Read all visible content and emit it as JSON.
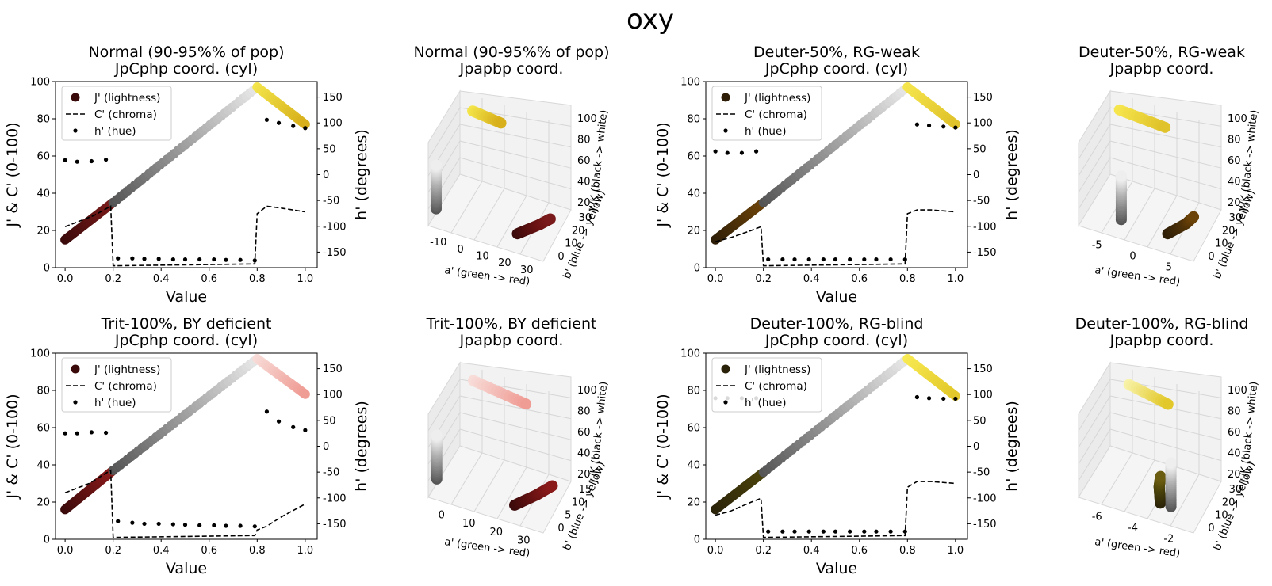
{
  "figure_title": "oxy",
  "chart_data": [
    {
      "type": "line",
      "title_line1": "Normal (90-95%% of pop)",
      "title_line2": "JpCphp coord. (cyl)",
      "xlabel": "Value",
      "ylabel": "J' & C' (0-100)",
      "y2label": "h' (degrees)",
      "xlim": [
        -0.04,
        1.05
      ],
      "ylim": [
        0,
        100
      ],
      "y2lim": [
        -180,
        180
      ],
      "xticks": [
        "0.0",
        "0.2",
        "0.4",
        "0.6",
        "0.8",
        "1.0"
      ],
      "yticks": [
        "0",
        "20",
        "40",
        "60",
        "80",
        "100"
      ],
      "y2ticks": [
        "-150",
        "-100",
        "-50",
        "0",
        "50",
        "100",
        "150"
      ],
      "legend": [
        "J' (lightness)",
        "C' (chroma)",
        "h' (hue)"
      ],
      "legend_swatch": "#3a0a0a",
      "series": [
        {
          "name": "J' (lightness)",
          "x": [
            0,
            0.2,
            0.2,
            0.8,
            0.8,
            1.0
          ],
          "values": [
            15,
            35,
            35,
            97,
            97,
            77
          ],
          "colors": [
            "#3a0a0a",
            "#7a1a1a",
            "#555555",
            "#e8e8e8",
            "#f3e54a",
            "#d8b01c"
          ]
        },
        {
          "name": "C' (chroma)",
          "x": [
            0,
            0.12,
            0.19,
            0.2,
            0.21,
            0.79,
            0.8,
            0.84,
            0.9,
            1.0
          ],
          "values": [
            22,
            28,
            33,
            1,
            1,
            2,
            29,
            33,
            32,
            30
          ]
        },
        {
          "name": "h' (hue)",
          "x": [
            0,
            0.05,
            0.11,
            0.17,
            0.22,
            0.28,
            0.33,
            0.39,
            0.45,
            0.5,
            0.56,
            0.62,
            0.67,
            0.73,
            0.79,
            0.84,
            0.89,
            0.95,
            1.0
          ],
          "values": [
            28,
            25,
            26,
            29,
            -162,
            -162,
            -163,
            -163,
            -164,
            -164,
            -164,
            -164,
            -165,
            -165,
            -166,
            106,
            100,
            94,
            90
          ]
        }
      ]
    },
    {
      "type": "scatter3d",
      "title_line1": "Normal (90-95%% of pop)",
      "title_line2": "Jpapbp coord.",
      "xlabel": "a' (green -> red)",
      "ylabel": "b' (blue -> yellow)",
      "zlabel": "J'/K (black -> white)",
      "xticks": [
        "-10",
        "0",
        "10",
        "20",
        "30"
      ],
      "yticks": [
        "0",
        "10",
        "20",
        "30"
      ],
      "zticks": [
        "20",
        "40",
        "60",
        "80",
        "100"
      ],
      "a": [
        22,
        27,
        29,
        0,
        0,
        0,
        3,
        10
      ],
      "b": [
        5,
        10,
        14,
        0,
        0,
        0,
        28,
        32
      ],
      "J": [
        20,
        28,
        30,
        30,
        65,
        80,
        97,
        85
      ],
      "colors": [
        "#3a0a0a",
        "#6a1212",
        "#7a1a1a",
        "#555555",
        "#bbbbbb",
        "#eeeeee",
        "#f3e54a",
        "#d8b01c"
      ]
    },
    {
      "type": "line",
      "title_line1": "Deuter-50%, RG-weak",
      "title_line2": "JpCphp coord. (cyl)",
      "xlabel": "Value",
      "ylabel": "J' & C' (0-100)",
      "y2label": "h' (degrees)",
      "xlim": [
        -0.04,
        1.05
      ],
      "ylim": [
        0,
        100
      ],
      "y2lim": [
        -180,
        180
      ],
      "xticks": [
        "0.0",
        "0.2",
        "0.4",
        "0.6",
        "0.8",
        "1.0"
      ],
      "yticks": [
        "0",
        "20",
        "40",
        "60",
        "80",
        "100"
      ],
      "y2ticks": [
        "-150",
        "-100",
        "-50",
        "0",
        "50",
        "100",
        "150"
      ],
      "legend": [
        "J' (lightness)",
        "C' (chroma)",
        "h' (hue)"
      ],
      "legend_swatch": "#2e1e08",
      "series": [
        {
          "name": "J' (lightness)",
          "x": [
            0,
            0.2,
            0.2,
            0.8,
            0.8,
            1.0
          ],
          "values": [
            15,
            35,
            35,
            97,
            97,
            77
          ],
          "colors": [
            "#2e1e08",
            "#6b4208",
            "#555555",
            "#e8e8e8",
            "#f6e64e",
            "#e0c22a"
          ]
        },
        {
          "name": "C' (chroma)",
          "x": [
            0,
            0.06,
            0.15,
            0.19,
            0.2,
            0.21,
            0.79,
            0.8,
            0.84,
            0.9,
            1.0
          ],
          "values": [
            14,
            16,
            20,
            22,
            1,
            1,
            2,
            29,
            31,
            31,
            30
          ]
        },
        {
          "name": "h' (hue)",
          "x": [
            0,
            0.05,
            0.11,
            0.17,
            0.22,
            0.28,
            0.33,
            0.39,
            0.45,
            0.5,
            0.56,
            0.62,
            0.67,
            0.73,
            0.79,
            0.84,
            0.89,
            0.95,
            1.0
          ],
          "values": [
            45,
            42,
            42,
            45,
            -164,
            -164,
            -164,
            -164,
            -164,
            -164,
            -164,
            -164,
            -164,
            -164,
            -164,
            97,
            95,
            93,
            91
          ]
        }
      ]
    },
    {
      "type": "scatter3d",
      "title_line1": "Deuter-50%, RG-weak",
      "title_line2": "Jpapbp coord.",
      "xlabel": "a' (green -> red)",
      "ylabel": "b' (blue -> yellow)",
      "zlabel": "J'/K (black -> white)",
      "xticks": [
        "-5",
        "0",
        "5"
      ],
      "yticks": [
        "0",
        "10",
        "20",
        "30"
      ],
      "zticks": [
        "20",
        "40",
        "60",
        "80",
        "100"
      ],
      "a": [
        6,
        8,
        8.5,
        0,
        0,
        0,
        -4,
        2
      ],
      "b": [
        5,
        10,
        14,
        0,
        0,
        0,
        28,
        32
      ],
      "J": [
        20,
        28,
        30,
        30,
        65,
        80,
        97,
        85
      ],
      "colors": [
        "#2e1e08",
        "#4f3208",
        "#6b4208",
        "#555555",
        "#bbbbbb",
        "#eeeeee",
        "#f6e64e",
        "#e0c22a"
      ]
    },
    {
      "type": "line",
      "title_line1": "Trit-100%, BY deficient",
      "title_line2": "JpCphp coord. (cyl)",
      "xlabel": "Value",
      "ylabel": "J' & C' (0-100)",
      "y2label": "h' (degrees)",
      "xlim": [
        -0.04,
        1.05
      ],
      "ylim": [
        0,
        100
      ],
      "y2lim": [
        -180,
        180
      ],
      "xticks": [
        "0.0",
        "0.2",
        "0.4",
        "0.6",
        "0.8",
        "1.0"
      ],
      "yticks": [
        "0",
        "20",
        "40",
        "60",
        "80",
        "100"
      ],
      "y2ticks": [
        "-150",
        "-100",
        "-50",
        "0",
        "50",
        "100",
        "150"
      ],
      "legend": [
        "J' (lightness)",
        "C' (chroma)",
        "h' (hue)"
      ],
      "legend_swatch": "#3a0a0a",
      "series": [
        {
          "name": "J' (lightness)",
          "x": [
            0,
            0.2,
            0.2,
            0.8,
            0.8,
            1.0
          ],
          "values": [
            16,
            37,
            37,
            97,
            97,
            78
          ],
          "colors": [
            "#3a0a0a",
            "#8a1a1a",
            "#555555",
            "#e8e8e8",
            "#f8dcd8",
            "#ef9c94"
          ]
        },
        {
          "name": "C' (chroma)",
          "x": [
            0,
            0.1,
            0.19,
            0.2,
            0.21,
            0.79,
            0.8,
            0.84,
            0.9,
            1.0
          ],
          "values": [
            25,
            30,
            37,
            1,
            1,
            2,
            5,
            7,
            12,
            19
          ]
        },
        {
          "name": "h' (hue)",
          "x": [
            0,
            0.05,
            0.11,
            0.17,
            0.22,
            0.28,
            0.33,
            0.39,
            0.45,
            0.5,
            0.56,
            0.62,
            0.67,
            0.73,
            0.79,
            0.84,
            0.89,
            0.95,
            1.0
          ],
          "values": [
            25,
            25,
            27,
            26,
            -145,
            -148,
            -150,
            -150,
            -151,
            -152,
            -153,
            -153,
            -154,
            -154,
            -155,
            67,
            48,
            37,
            31
          ]
        }
      ]
    },
    {
      "type": "scatter3d",
      "title_line1": "Trit-100%, BY deficient",
      "title_line2": "Jpapbp coord.",
      "xlabel": "a' (green -> red)",
      "ylabel": "b' (blue -> yellow)",
      "zlabel": "J'/K (black -> white)",
      "xticks": [
        "0",
        "10",
        "20",
        "30"
      ],
      "yticks": [
        "0",
        "5",
        "10",
        "15"
      ],
      "zticks": [
        "20",
        "40",
        "60",
        "80",
        "100"
      ],
      "a": [
        22,
        27,
        30,
        0,
        0,
        0,
        3,
        18
      ],
      "b": [
        2,
        5,
        8,
        0,
        0,
        0,
        15,
        16
      ],
      "J": [
        20,
        28,
        32,
        30,
        65,
        80,
        97,
        85
      ],
      "colors": [
        "#3a0a0a",
        "#6a1212",
        "#8a1a1a",
        "#555555",
        "#bbbbbb",
        "#eeeeee",
        "#f8dcd8",
        "#ef9c94"
      ]
    },
    {
      "type": "line",
      "title_line1": "Deuter-100%, RG-blind",
      "title_line2": "JpCphp coord. (cyl)",
      "xlabel": "Value",
      "ylabel": "J' & C' (0-100)",
      "y2label": "h' (degrees)",
      "xlim": [
        -0.04,
        1.05
      ],
      "ylim": [
        0,
        100
      ],
      "y2lim": [
        -180,
        180
      ],
      "xticks": [
        "0.0",
        "0.2",
        "0.4",
        "0.6",
        "0.8",
        "1.0"
      ],
      "yticks": [
        "0",
        "20",
        "40",
        "60",
        "80",
        "100"
      ],
      "y2ticks": [
        "-150",
        "-100",
        "-50",
        "0",
        "50",
        "100",
        "150"
      ],
      "legend": [
        "J' (lightness)",
        "C' (chroma)",
        "h' (hue)"
      ],
      "legend_swatch": "#2a2208",
      "series": [
        {
          "name": "J' (lightness)",
          "x": [
            0,
            0.2,
            0.2,
            0.8,
            0.8,
            1.0
          ],
          "values": [
            16,
            36,
            36,
            97,
            97,
            77
          ],
          "colors": [
            "#2a2208",
            "#4a420a",
            "#555555",
            "#e8e8e8",
            "#f8ea52",
            "#e2c82a"
          ]
        },
        {
          "name": "C' (chroma)",
          "x": [
            0,
            0.06,
            0.15,
            0.19,
            0.2,
            0.21,
            0.79,
            0.8,
            0.84,
            0.9,
            1.0
          ],
          "values": [
            13,
            15,
            20,
            22,
            1,
            1,
            2,
            28,
            31,
            31,
            30
          ]
        },
        {
          "name": "h' (hue)",
          "x": [
            0,
            0.05,
            0.11,
            0.17,
            0.22,
            0.28,
            0.33,
            0.39,
            0.45,
            0.5,
            0.56,
            0.62,
            0.67,
            0.73,
            0.79,
            0.84,
            0.89,
            0.95,
            1.0
          ],
          "values": [
            93,
            93,
            93,
            93,
            -165,
            -165,
            -165,
            -165,
            -165,
            -165,
            -165,
            -165,
            -165,
            -165,
            -165,
            95,
            93,
            92,
            92
          ]
        }
      ]
    },
    {
      "type": "scatter3d",
      "title_line1": "Deuter-100%, RG-blind",
      "title_line2": "Jpapbp coord.",
      "xlabel": "a' (green -> red)",
      "ylabel": "b' (blue -> yellow)",
      "zlabel": "J'/K (black -> white)",
      "xticks": [
        "-6",
        "-4",
        "-2"
      ],
      "yticks": [
        "0",
        "10",
        "20",
        "30"
      ],
      "zticks": [
        "20",
        "40",
        "60",
        "80",
        "100"
      ],
      "a": [
        -1.5,
        -2.0,
        -2.2,
        -0.2,
        -0.2,
        -0.2,
        -6.0,
        -3.0
      ],
      "b": [
        5,
        10,
        14,
        0,
        0,
        0,
        28,
        32
      ],
      "J": [
        20,
        28,
        32,
        30,
        65,
        80,
        97,
        80
      ],
      "colors": [
        "#2a2208",
        "#4a420a",
        "#6a5c10",
        "#555555",
        "#bbbbbb",
        "#eeeeee",
        "#f8f2a8",
        "#e2c82a"
      ]
    }
  ]
}
